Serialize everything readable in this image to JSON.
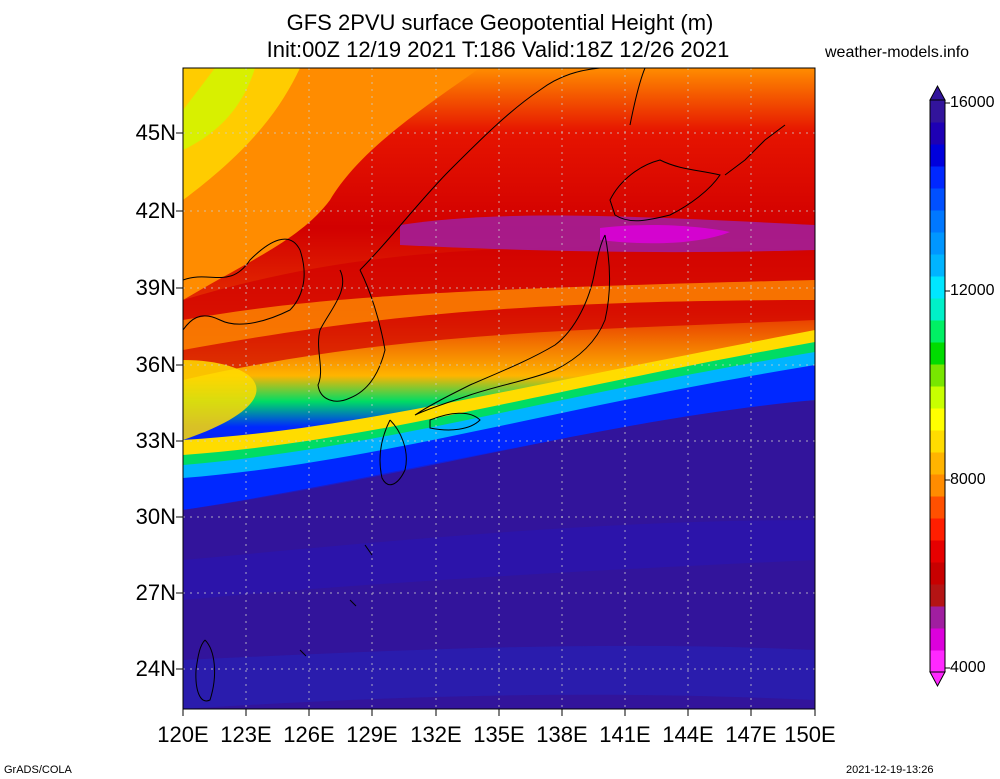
{
  "title": {
    "line1": "GFS 2PVU surface Geopotential Height (m)",
    "line2": "Init:00Z 12/19 2021 T:186 Valid:18Z 12/26 2021"
  },
  "source": "weather-models.info",
  "lat_labels": [
    "45N",
    "42N",
    "39N",
    "36N",
    "33N",
    "30N",
    "27N",
    "24N"
  ],
  "lon_labels": [
    "120E",
    "123E",
    "126E",
    "129E",
    "132E",
    "135E",
    "138E",
    "141E",
    "144E",
    "147E",
    "150E"
  ],
  "colorbar": {
    "labels": [
      "16000",
      "12000",
      "8000",
      "4000"
    ],
    "colors": [
      "#ff28ff",
      "#dc00dc",
      "#a01ea0",
      "#b41414",
      "#c80000",
      "#e60000",
      "#ff1e00",
      "#ff5000",
      "#ff8c00",
      "#ffb400",
      "#ffdc00",
      "#ffff00",
      "#c8ff00",
      "#78e600",
      "#00dc00",
      "#00f064",
      "#00f0c8",
      "#00e6ff",
      "#00b4ff",
      "#0096ff",
      "#0078ff",
      "#0050ff",
      "#0028ff",
      "#0000dc",
      "#1e00b4",
      "#32149b"
    ]
  },
  "footer": {
    "left": "GrADS/COLA",
    "right": "2021-12-19-13:26"
  }
}
